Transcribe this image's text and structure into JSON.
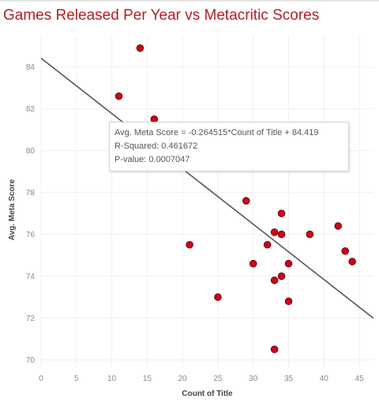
{
  "title": "Games Released Per Year vs Metacritic Scores",
  "colors": {
    "title": "#b21f24",
    "point_fill": "#d0021b",
    "point_stroke": "#5a0000",
    "trend": "#555555"
  },
  "tooltip": {
    "equation": "Avg. Meta Score = -0.264515*Count of Title + 84.419",
    "r_squared": "R-Squared: 0.461672",
    "p_value": "P-value: 0.0007047"
  },
  "chart_data": {
    "type": "scatter",
    "title": "Games Released Per Year vs Metacritic Scores",
    "xlabel": "Count of Title",
    "ylabel": "Avg. Meta Score",
    "xlim": [
      0,
      47
    ],
    "ylim": [
      69.6,
      85.5
    ],
    "xticks": [
      0,
      5,
      10,
      15,
      20,
      25,
      30,
      35,
      40,
      45
    ],
    "yticks": [
      70,
      72,
      74,
      76,
      78,
      80,
      82,
      84
    ],
    "grid": true,
    "trendline": {
      "slope": -0.264515,
      "intercept": 84.419
    },
    "points": [
      {
        "x": 11,
        "y": 82.6
      },
      {
        "x": 14,
        "y": 84.9
      },
      {
        "x": 16,
        "y": 81.5
      },
      {
        "x": 21,
        "y": 75.5
      },
      {
        "x": 25,
        "y": 73.0
      },
      {
        "x": 29,
        "y": 77.6
      },
      {
        "x": 30,
        "y": 74.6
      },
      {
        "x": 32,
        "y": 75.5
      },
      {
        "x": 33,
        "y": 76.1
      },
      {
        "x": 33,
        "y": 73.8
      },
      {
        "x": 33,
        "y": 70.5
      },
      {
        "x": 34,
        "y": 77.0
      },
      {
        "x": 34,
        "y": 76.0
      },
      {
        "x": 34,
        "y": 74.0
      },
      {
        "x": 35,
        "y": 74.6
      },
      {
        "x": 35,
        "y": 72.8
      },
      {
        "x": 38,
        "y": 76.0
      },
      {
        "x": 42,
        "y": 76.4
      },
      {
        "x": 43,
        "y": 75.2
      },
      {
        "x": 44,
        "y": 74.7
      }
    ]
  }
}
